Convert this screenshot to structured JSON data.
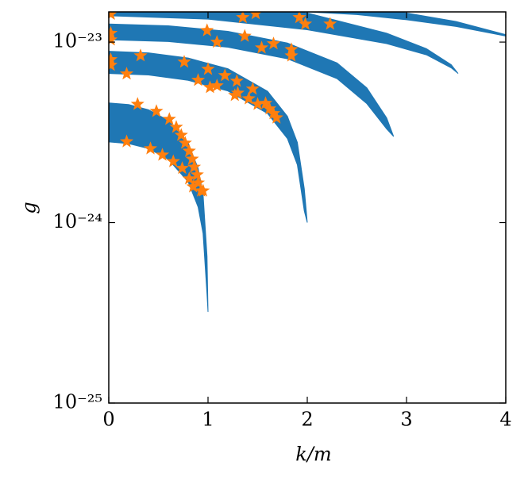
{
  "chart_data": {
    "type": "scatter",
    "log_y": true,
    "x_label": "k/m",
    "y_label": "g",
    "xlim": [
      0,
      4
    ],
    "xticks": [
      0,
      1,
      2,
      3,
      4
    ],
    "ylim": [
      1e-25,
      1.47e-23
    ],
    "yticks": [
      {
        "value": 1e-25,
        "label": "10⁻²⁵"
      },
      {
        "value": 1e-24,
        "label": "10⁻²⁴"
      },
      {
        "value": 1e-23,
        "label": "10⁻²³"
      }
    ],
    "series": [
      {
        "kind": "band",
        "color": "#1f77b4",
        "x": [
          0,
          0.2,
          0.4,
          0.6,
          0.8,
          0.9,
          0.95,
          0.99,
          1.0
        ],
        "upper": [
          4.6e-24,
          4.51e-24,
          4.22e-24,
          3.68e-24,
          2.76e-24,
          2e-24,
          1.44e-24,
          6.5e-25,
          3.2e-25
        ],
        "lower": [
          2.8e-24,
          2.74e-24,
          2.57e-24,
          2.24e-24,
          1.68e-24,
          1.22e-24,
          8.7e-25,
          4e-25,
          3.2e-25
        ]
      },
      {
        "kind": "band",
        "color": "#1f77b4",
        "x": [
          0,
          0.4,
          0.8,
          1.2,
          1.6,
          1.8,
          1.9,
          1.97,
          2.0
        ],
        "upper": [
          8.9e-24,
          8.72e-24,
          8.16e-24,
          7.12e-24,
          5.34e-24,
          3.88e-24,
          2.78e-24,
          1.54e-24,
          1e-24
        ],
        "lower": [
          6.7e-24,
          6.57e-24,
          6.14e-24,
          5.36e-24,
          4.02e-24,
          2.92e-24,
          2.09e-24,
          1.16e-24,
          1e-24
        ]
      },
      {
        "kind": "band",
        "color": "#1f77b4",
        "x": [
          0,
          0.6,
          1.2,
          1.8,
          2.3,
          2.6,
          2.8,
          2.87
        ],
        "upper": [
          1.26e-23,
          1.232e-23,
          1.147e-23,
          9.88e-24,
          7.67e-24,
          5.58e-24,
          3.8e-24,
          3e-24
        ],
        "lower": [
          1.03e-23,
          1.007e-23,
          9.37e-24,
          8.08e-24,
          6.27e-24,
          4.56e-24,
          3.3e-24,
          3e-24
        ]
      },
      {
        "kind": "band",
        "color": "#1f77b4",
        "x": [
          0,
          1,
          2,
          2.8,
          3.2,
          3.45,
          3.52
        ],
        "upper": [
          1.7e-23,
          1.63e-23,
          1.45e-23,
          1.12e-23,
          9.2e-24,
          7.5e-24,
          6.7e-24
        ],
        "lower": [
          1.4e-23,
          1.34e-23,
          1.17e-23,
          9.8e-24,
          8.5e-24,
          7.2e-24,
          6.7e-24
        ]
      },
      {
        "kind": "band",
        "color": "#1f77b4",
        "x": [
          2,
          2.5,
          3,
          3.5,
          4
        ],
        "upper": [
          1.6e-23,
          1.55e-23,
          1.45e-23,
          1.3e-23,
          1.1e-23
        ],
        "lower": [
          1.47e-23,
          1.42e-23,
          1.33e-23,
          1.22e-23,
          1.08e-23
        ]
      },
      {
        "kind": "stars",
        "color": "#ff7f0e",
        "x": [
          0.29,
          0.48,
          0.61,
          0.68,
          0.73,
          0.77,
          0.81,
          0.84,
          0.86,
          0.89,
          0.9,
          0.93,
          0.95,
          0.18,
          0.42,
          0.54,
          0.65,
          0.74,
          0.81,
          0.85,
          0.18,
          0.32,
          0.76,
          1.0,
          0.9,
          1.02,
          1.17,
          1.29,
          1.09,
          1.3,
          1.41,
          1.45,
          1.5,
          1.58,
          1.62,
          1.66,
          1.69,
          1.27,
          0.02,
          0.02,
          0.02,
          0.99,
          1.09,
          1.37,
          1.54,
          1.84,
          1.84,
          1.98,
          1.66,
          0.02,
          0.02,
          1.35,
          1.48,
          1.92,
          2.23
        ],
        "values": [
          4.53e-24,
          4.14e-24,
          3.74e-24,
          3.38e-24,
          3.05e-24,
          2.76e-24,
          2.49e-24,
          2.25e-24,
          2.03e-24,
          1.84e-24,
          1.66e-24,
          1.5e-24,
          1.5e-24,
          2.81e-24,
          2.57e-24,
          2.37e-24,
          2.18e-24,
          2e-24,
          1.75e-24,
          1.58e-24,
          6.67e-24,
          8.41e-24,
          7.76e-24,
          7.08e-24,
          6.15e-24,
          5.61e-24,
          6.53e-24,
          6.08e-24,
          5.73e-24,
          5.22e-24,
          4.86e-24,
          5.5e-24,
          4.53e-24,
          4.58e-24,
          4.27e-24,
          4.02e-24,
          3.81e-24,
          5.07e-24,
          1.03e-23,
          8e-24,
          7.45e-24,
          1.16e-23,
          1e-23,
          1.08e-23,
          9.3e-24,
          9.1e-24,
          8.4e-24,
          1.26e-23,
          9.8e-24,
          1.43e-23,
          1.12e-23,
          1.37e-23,
          1.44e-23,
          1.37e-23,
          1.26e-23
        ]
      }
    ]
  }
}
